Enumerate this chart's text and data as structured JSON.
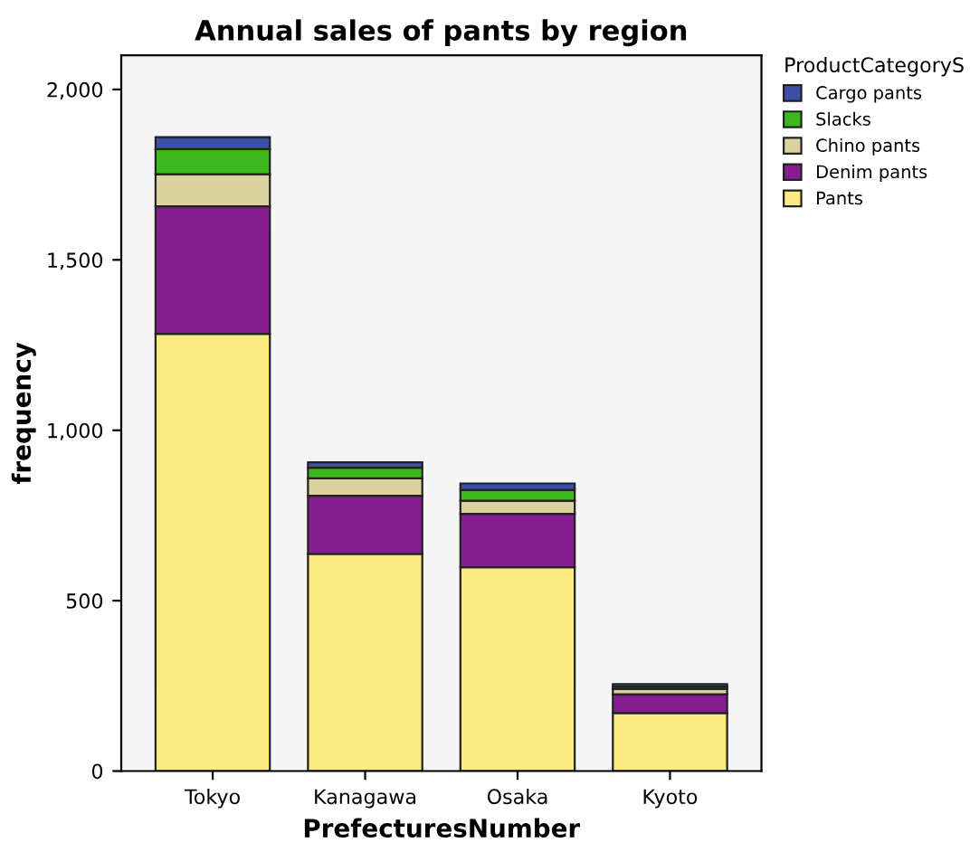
{
  "chart_data": {
    "type": "bar",
    "title": "Annual sales of pants by region",
    "xlabel": "PrefecturesNumber",
    "ylabel": "frequency",
    "legend_title": "ProductCategoryS",
    "categories": [
      "Tokyo",
      "Kanagawa",
      "Osaka",
      "Kyoto"
    ],
    "stacked": true,
    "legend": "top right",
    "grid": false,
    "ylim": [
      0,
      2100
    ],
    "yticks": [
      0,
      500,
      {
        "value": 1000,
        "label": "1,000"
      },
      {
        "value": 1500,
        "label": "1,500"
      },
      {
        "value": 2000,
        "label": "2,000"
      }
    ],
    "series": [
      {
        "name": "Pants",
        "color": "#f9eb7e",
        "values": [
          1283,
          637,
          598,
          170
        ]
      },
      {
        "name": "Denim pants",
        "color": "#861e92",
        "values": [
          374,
          171,
          157,
          55
        ]
      },
      {
        "name": "Chino pants",
        "color": "#dcd29e",
        "values": [
          94,
          51,
          38,
          16
        ]
      },
      {
        "name": "Slacks",
        "color": "#3cb81c",
        "values": [
          74,
          31,
          32,
          7
        ]
      },
      {
        "name": "Cargo pants",
        "color": "#3e4fa8",
        "values": [
          35,
          16,
          19,
          7
        ]
      }
    ]
  }
}
